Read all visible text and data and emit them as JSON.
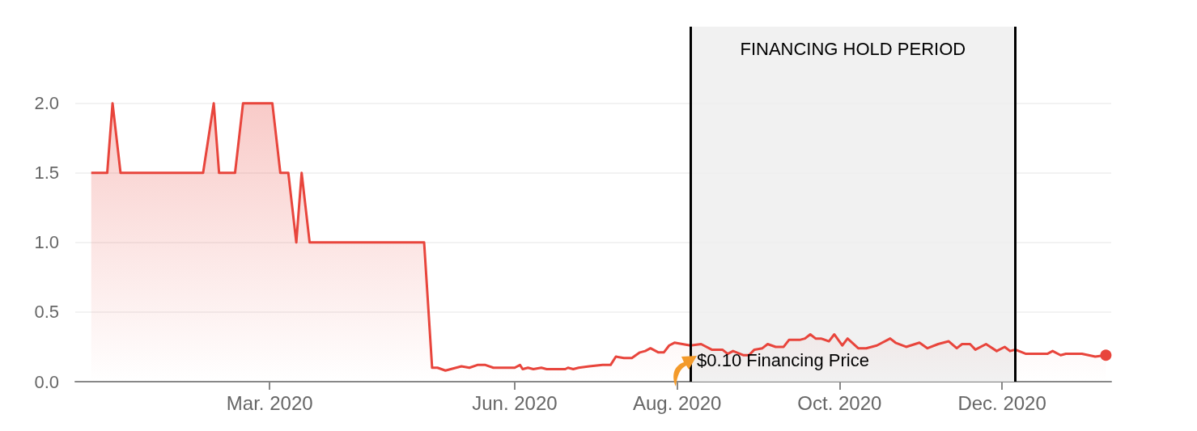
{
  "chart_data": {
    "type": "area",
    "xlim": [
      "2019-12-19",
      "2021-01-11"
    ],
    "xticks": [
      {
        "value": "2020-03-01",
        "label": "Mar. 2020"
      },
      {
        "value": "2020-06-01",
        "label": "Jun. 2020"
      },
      {
        "value": "2020-08-01",
        "label": "Aug. 2020"
      },
      {
        "value": "2020-10-01",
        "label": "Oct. 2020"
      },
      {
        "value": "2020-12-01",
        "label": "Dec. 2020"
      }
    ],
    "ylim": [
      0,
      2.55
    ],
    "yticks": [
      {
        "value": 0,
        "label": "0.0"
      },
      {
        "value": 0.5,
        "label": "0.5"
      },
      {
        "value": 1,
        "label": "1.0"
      },
      {
        "value": 1.5,
        "label": "1.5"
      },
      {
        "value": 2,
        "label": "2.0"
      }
    ],
    "grid": "y",
    "x": [
      "2019-12-25",
      "2019-12-31",
      "2020-01-02",
      "2020-01-05",
      "2020-02-05",
      "2020-02-09",
      "2020-02-11",
      "2020-02-17",
      "2020-02-20",
      "2020-03-02",
      "2020-03-05",
      "2020-03-08",
      "2020-03-11",
      "2020-03-13",
      "2020-03-16",
      "2020-04-28",
      "2020-05-01",
      "2020-05-03",
      "2020-05-06",
      "2020-05-12",
      "2020-05-15",
      "2020-05-18",
      "2020-05-21",
      "2020-05-24",
      "2020-06-01",
      "2020-06-03",
      "2020-06-04",
      "2020-06-06",
      "2020-06-08",
      "2020-06-11",
      "2020-06-13",
      "2020-06-20",
      "2020-06-21",
      "2020-06-23",
      "2020-06-25",
      "2020-06-29",
      "2020-07-04",
      "2020-07-07",
      "2020-07-09",
      "2020-07-12",
      "2020-07-15",
      "2020-07-18",
      "2020-07-20",
      "2020-07-22",
      "2020-07-25",
      "2020-07-27",
      "2020-07-29",
      "2020-07-31",
      "2020-08-03",
      "2020-08-06",
      "2020-08-10",
      "2020-08-14",
      "2020-08-18",
      "2020-08-20",
      "2020-08-22",
      "2020-08-26",
      "2020-08-28",
      "2020-08-30",
      "2020-09-02",
      "2020-09-04",
      "2020-09-07",
      "2020-09-10",
      "2020-09-12",
      "2020-09-16",
      "2020-09-18",
      "2020-09-20",
      "2020-09-22",
      "2020-09-24",
      "2020-09-27",
      "2020-09-29",
      "2020-10-02",
      "2020-10-04",
      "2020-10-08",
      "2020-10-11",
      "2020-10-15",
      "2020-10-20",
      "2020-10-22",
      "2020-10-26",
      "2020-10-31",
      "2020-11-03",
      "2020-11-07",
      "2020-11-11",
      "2020-11-14",
      "2020-11-16",
      "2020-11-19",
      "2020-11-21",
      "2020-11-25",
      "2020-11-29",
      "2020-12-02",
      "2020-12-04",
      "2020-12-06",
      "2020-12-10",
      "2020-12-18",
      "2020-12-20",
      "2020-12-23",
      "2020-12-25",
      "2020-12-31",
      "2021-01-05",
      "2021-01-09"
    ],
    "series": [
      {
        "color": "#e8453c",
        "values": [
          1.5,
          1.5,
          2.0,
          1.5,
          1.5,
          2.0,
          1.5,
          1.5,
          2.0,
          2.0,
          1.5,
          1.5,
          1.0,
          1.5,
          1.0,
          1.0,
          0.1,
          0.1,
          0.08,
          0.11,
          0.1,
          0.12,
          0.12,
          0.1,
          0.1,
          0.12,
          0.09,
          0.1,
          0.09,
          0.1,
          0.09,
          0.09,
          0.1,
          0.09,
          0.1,
          0.11,
          0.12,
          0.12,
          0.18,
          0.17,
          0.17,
          0.21,
          0.22,
          0.24,
          0.21,
          0.21,
          0.26,
          0.28,
          0.27,
          0.26,
          0.27,
          0.23,
          0.23,
          0.2,
          0.22,
          0.19,
          0.19,
          0.23,
          0.24,
          0.27,
          0.25,
          0.25,
          0.3,
          0.3,
          0.31,
          0.34,
          0.31,
          0.31,
          0.29,
          0.34,
          0.26,
          0.31,
          0.24,
          0.24,
          0.26,
          0.31,
          0.28,
          0.25,
          0.28,
          0.24,
          0.27,
          0.29,
          0.24,
          0.27,
          0.27,
          0.23,
          0.27,
          0.22,
          0.25,
          0.22,
          0.23,
          0.2,
          0.2,
          0.22,
          0.19,
          0.2,
          0.2,
          0.18,
          0.19
        ]
      }
    ],
    "bands": [
      {
        "axis": "x",
        "from": "2020-08-06",
        "to": "2020-12-06",
        "label": "FINANCING HOLD PERIOD",
        "color": "#efefef"
      }
    ],
    "ref_lines": [
      {
        "axis": "x",
        "value": "2020-08-06",
        "color": "#000000"
      },
      {
        "axis": "x",
        "value": "2020-12-06",
        "color": "#000000"
      }
    ],
    "annotations": [
      "$0.10 Financing Price"
    ]
  }
}
